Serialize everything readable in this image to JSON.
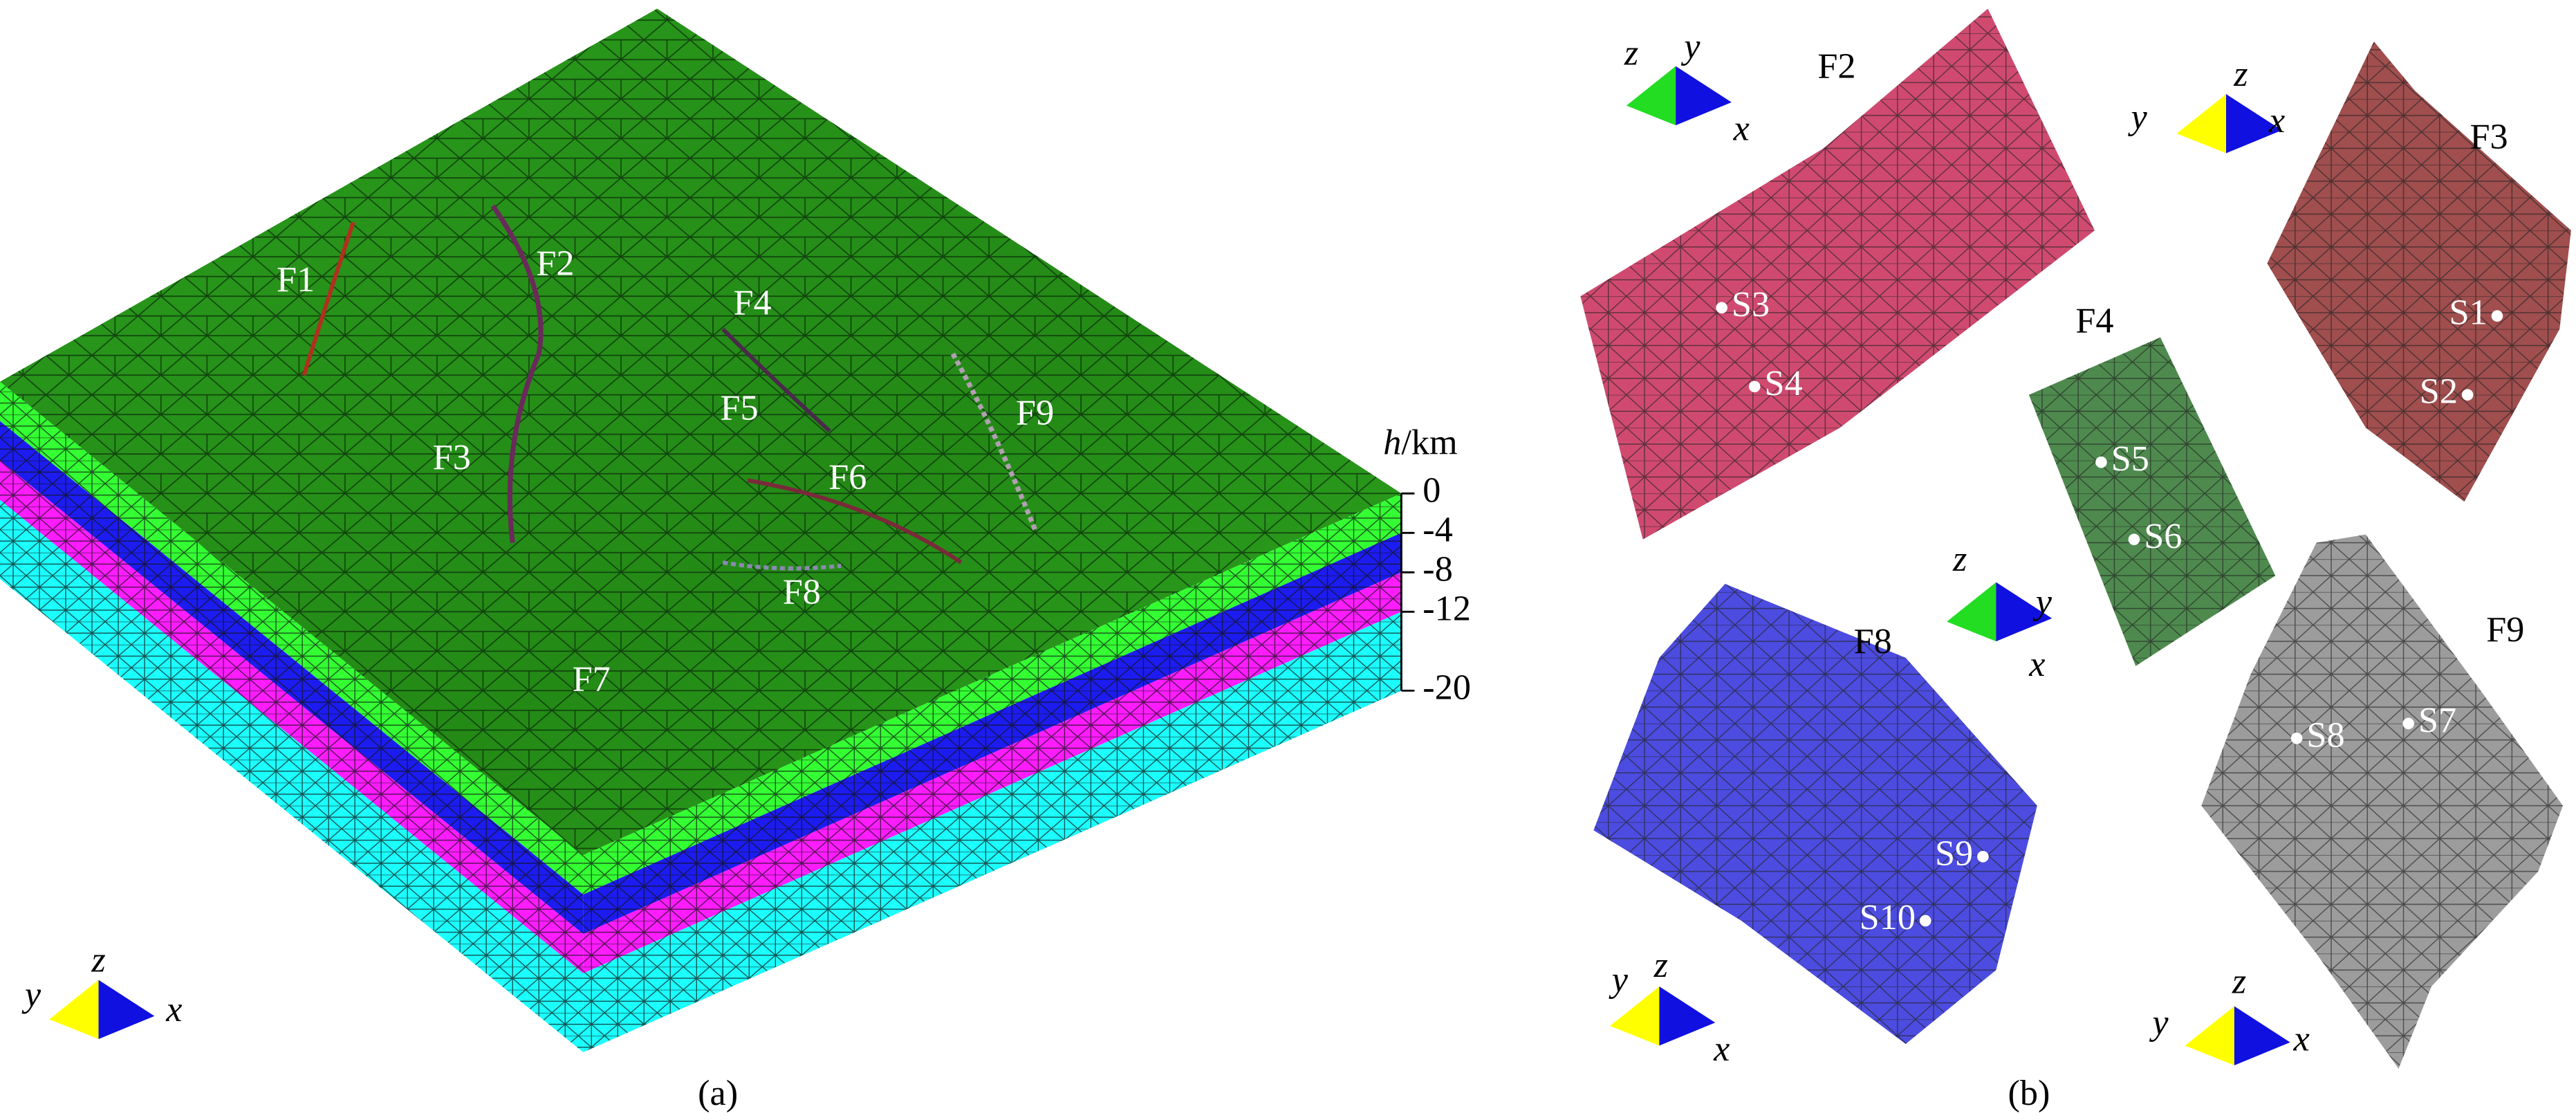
{
  "panel_a": {
    "fault_labels": [
      "F1",
      "F2",
      "F3",
      "F4",
      "F5",
      "F6",
      "F7",
      "F8",
      "F9"
    ],
    "depth_axis": {
      "label_var": "h",
      "label_unit": "/km",
      "ticks": [
        0,
        -4,
        -8,
        -12,
        -20
      ]
    },
    "layer_colors": [
      "#33ff33",
      "#1c1cf0",
      "#ff1cff",
      "#1cffff"
    ],
    "triad": {
      "y": "y",
      "z": "z",
      "x": "x"
    },
    "caption": "(a)"
  },
  "panel_b": {
    "faults": [
      {
        "label": "F2",
        "stations": [
          "S3",
          "S4"
        ],
        "triad": {
          "z": "z",
          "y": "y",
          "x": "x"
        }
      },
      {
        "label": "F3",
        "stations": [
          "S1",
          "S2"
        ],
        "triad": {
          "y": "y",
          "z": "z",
          "x": "x"
        }
      },
      {
        "label": "F4",
        "stations": [
          "S5",
          "S6"
        ],
        "triad": {
          "z": "z",
          "y": "y",
          "x": "x"
        }
      },
      {
        "label": "F8",
        "stations": [
          "S9",
          "S10"
        ],
        "triad": {
          "y": "y",
          "z": "z",
          "x": "x"
        }
      },
      {
        "label": "F9",
        "stations": [
          "S7",
          "S8"
        ],
        "triad": {
          "y": "y",
          "z": "z",
          "x": "x"
        }
      }
    ],
    "caption": "(b)"
  }
}
